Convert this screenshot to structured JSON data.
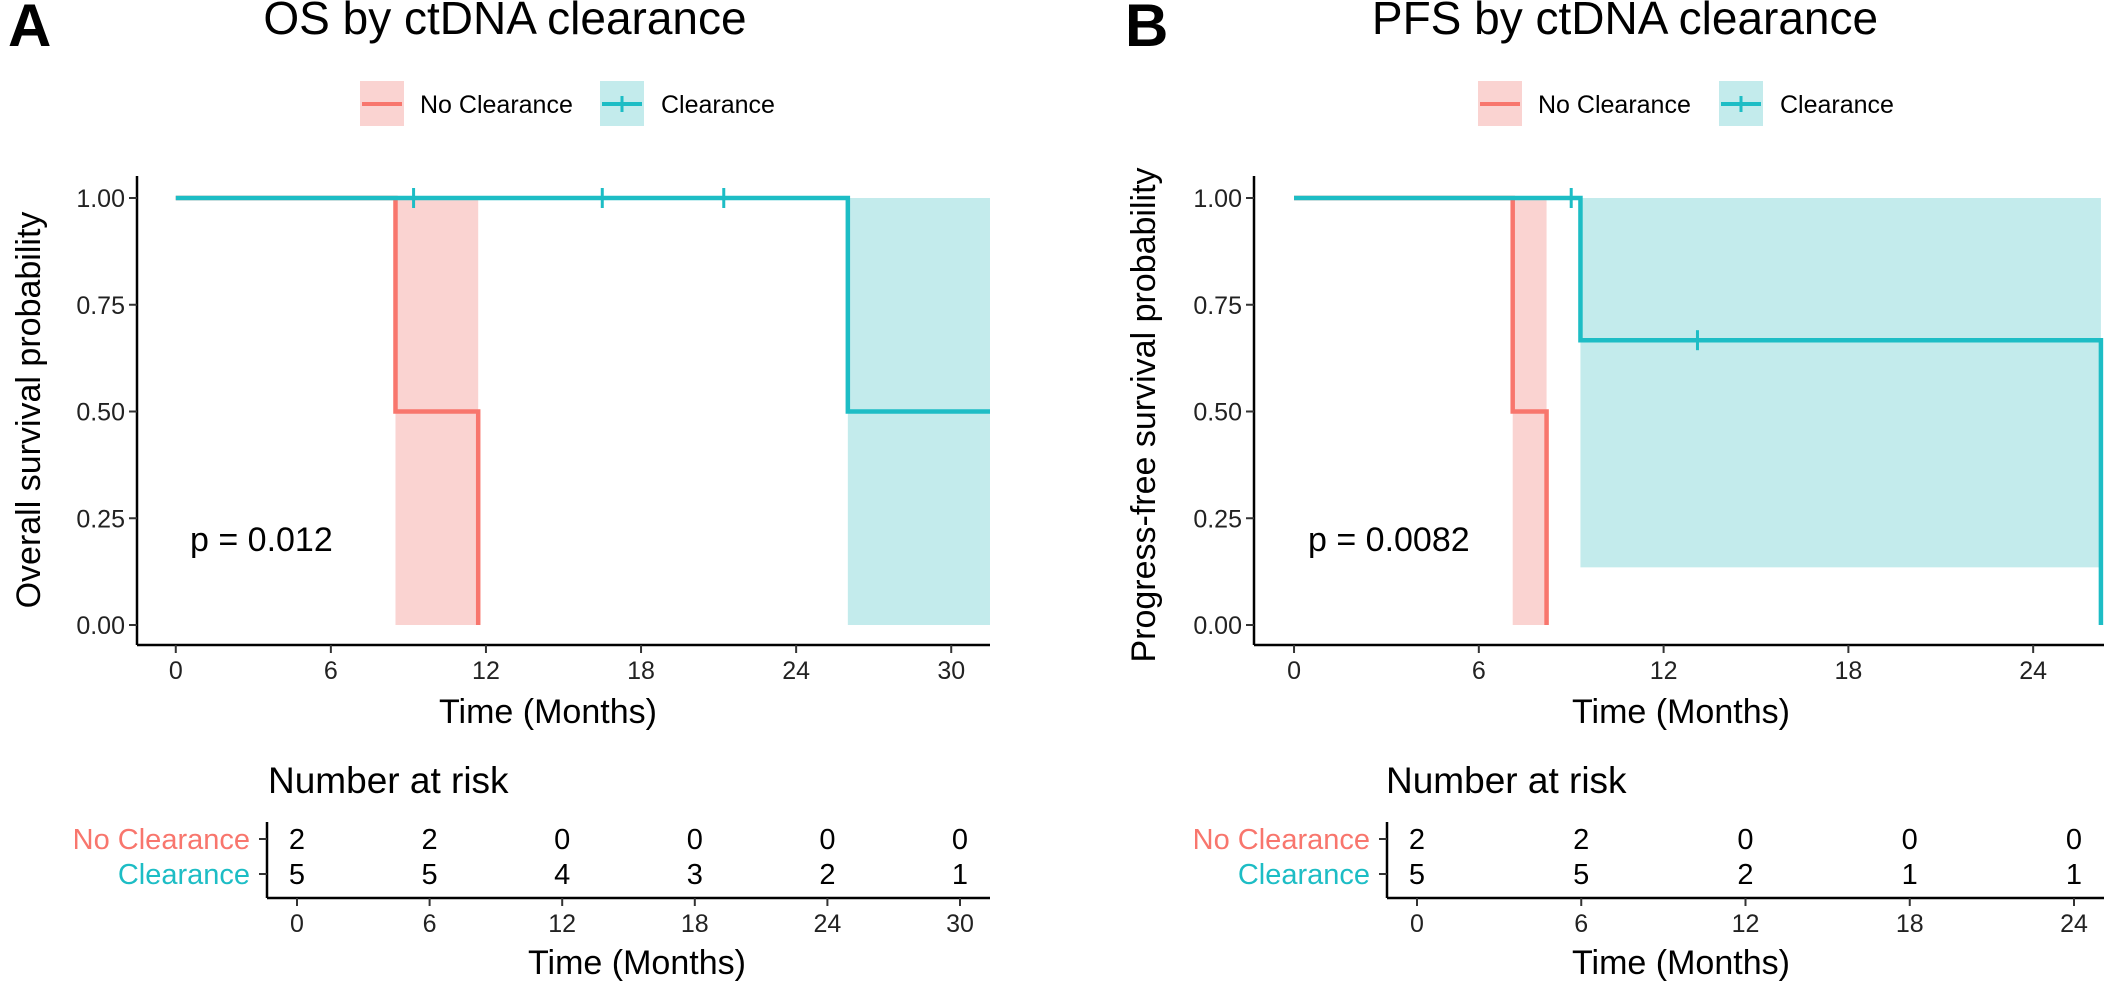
{
  "colors": {
    "no_clearance": "#F8766D",
    "no_clearance_ci": "#FAD3D1",
    "clearance": "#1DBDC5",
    "clearance_ci": "#C3EBEC"
  },
  "panels": [
    {
      "letter": "A",
      "title": "OS by ctDNA clearance",
      "legend": [
        "No Clearance",
        "Clearance"
      ],
      "p_value_text": "p = 0.012",
      "risk_table": {
        "title": "Number at risk",
        "xlabel": "Time (Months)",
        "groups": [
          "No Clearance",
          "Clearance"
        ],
        "times": [
          0,
          6,
          12,
          18,
          24,
          30
        ],
        "values": [
          [
            2,
            2,
            0,
            0,
            0,
            0
          ],
          [
            5,
            5,
            4,
            3,
            2,
            1
          ]
        ]
      }
    },
    {
      "letter": "B",
      "title": "PFS by ctDNA clearance",
      "legend": [
        "No Clearance",
        "Clearance"
      ],
      "p_value_text": "p = 0.0082",
      "risk_table": {
        "title": "Number at risk",
        "xlabel": "Time (Months)",
        "groups": [
          "No Clearance",
          "Clearance"
        ],
        "times": [
          0,
          6,
          12,
          18,
          24
        ],
        "values": [
          [
            2,
            2,
            0,
            0,
            0
          ],
          [
            5,
            5,
            2,
            1,
            1
          ]
        ]
      }
    }
  ],
  "chart_data": [
    {
      "type": "line",
      "title": "OS by ctDNA clearance",
      "xlabel": "Time (Months)",
      "ylabel": "Overall survival probability",
      "xlim": [
        -1.5,
        31.5
      ],
      "ylim": [
        0,
        1
      ],
      "xticks": [
        0,
        6,
        12,
        18,
        24,
        30
      ],
      "yticks": [
        "0.00",
        "0.25",
        "0.50",
        "0.75",
        "1.00"
      ],
      "grid": false,
      "legend_position": "top",
      "series": [
        {
          "name": "No Clearance",
          "x": [
            0,
            8.5,
            8.5,
            11.7,
            11.7
          ],
          "y": [
            1,
            1,
            0.5,
            0.5,
            0
          ],
          "ci": [
            {
              "x_start": 8.5,
              "x_end": 11.7,
              "lower": 0,
              "upper": 1
            }
          ],
          "censor_times": []
        },
        {
          "name": "Clearance",
          "x": [
            0,
            26,
            26,
            31.5
          ],
          "y": [
            1,
            1,
            0.5,
            0.5
          ],
          "ci": [
            {
              "x_start": 26,
              "x_end": 31.5,
              "lower": 0,
              "upper": 1
            }
          ],
          "censor_times": [
            9.2,
            16.5,
            21.2
          ]
        }
      ]
    },
    {
      "type": "line",
      "title": "PFS by ctDNA clearance",
      "xlabel": "Time (Months)",
      "ylabel": "Progress-free survival probability",
      "xlim": [
        -1.3,
        26.3
      ],
      "ylim": [
        0,
        1
      ],
      "xticks": [
        0,
        6,
        12,
        18,
        24
      ],
      "yticks": [
        "0.00",
        "0.25",
        "0.50",
        "0.75",
        "1.00"
      ],
      "grid": false,
      "legend_position": "top",
      "series": [
        {
          "name": "No Clearance",
          "x": [
            0,
            7.1,
            7.1,
            8.2,
            8.2
          ],
          "y": [
            1,
            1,
            0.5,
            0.5,
            0
          ],
          "ci": [
            {
              "x_start": 7.1,
              "x_end": 8.2,
              "lower": 0,
              "upper": 1
            }
          ],
          "censor_times": []
        },
        {
          "name": "Clearance",
          "x": [
            0,
            9.3,
            9.3,
            26.2,
            26.2
          ],
          "y": [
            1,
            1,
            0.667,
            0.667,
            0
          ],
          "ci": [
            {
              "x_start": 9.3,
              "x_end": 26.2,
              "lower": 0.135,
              "upper": 1
            }
          ],
          "censor_times": [
            9.0,
            13.1
          ]
        }
      ]
    }
  ]
}
